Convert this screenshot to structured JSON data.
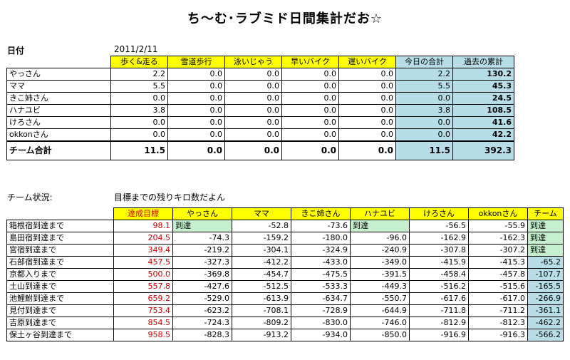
{
  "title": "ち～む･ラブミド日間集計だお☆",
  "date_label": "日付",
  "date_value": "2011/2/11",
  "daily": {
    "headers": [
      "歩く&走る",
      "雪道歩行",
      "泳いじゃう",
      "早いバイク",
      "遅いバイク",
      "今日の合計",
      "過去の累計"
    ],
    "rows": [
      {
        "name": "やっさん",
        "v": [
          "2.2",
          "0.0",
          "0.0",
          "0.0",
          "0.0",
          "2.2",
          "130.2"
        ]
      },
      {
        "name": "ママ",
        "v": [
          "5.5",
          "0.0",
          "0.0",
          "0.0",
          "0.0",
          "5.5",
          "45.3"
        ]
      },
      {
        "name": "きこ姉さん",
        "v": [
          "0.0",
          "0.0",
          "0.0",
          "0.0",
          "0.0",
          "0.0",
          "24.5"
        ]
      },
      {
        "name": "ハナユビ",
        "v": [
          "3.8",
          "0.0",
          "0.0",
          "0.0",
          "0.0",
          "3.8",
          "108.5"
        ]
      },
      {
        "name": "けろさん",
        "v": [
          "0.0",
          "0.0",
          "0.0",
          "0.0",
          "0.0",
          "0.0",
          "41.6"
        ]
      },
      {
        "name": "okkonさん",
        "v": [
          "0.0",
          "0.0",
          "0.0",
          "0.0",
          "0.0",
          "0.0",
          "42.2"
        ]
      }
    ],
    "total": {
      "name": "チーム合計",
      "v": [
        "11.5",
        "0.0",
        "0.0",
        "0.0",
        "0.0",
        "11.5",
        "392.3"
      ]
    }
  },
  "status_label": "チーム状況:",
  "status_sub": "目標までの残りキロ数だよん",
  "team": {
    "headers": [
      "達成目標",
      "やっさん",
      "ママ",
      "きこ姉さん",
      "ハナユビ",
      "けろさん",
      "okkonさん",
      "チーム"
    ],
    "rows": [
      {
        "name": "箱根宿到達まで",
        "v": [
          "98.1",
          "到達",
          "-52.8",
          "-73.6",
          "到達",
          "-56.5",
          "-55.9",
          "到達"
        ]
      },
      {
        "name": "島田宿到達まで",
        "v": [
          "204.5",
          "-74.3",
          "-159.2",
          "-180.0",
          "-96.0",
          "-162.9",
          "-162.3",
          "到達"
        ]
      },
      {
        "name": "宮宿到達まで",
        "v": [
          "349.4",
          "-219.2",
          "-304.1",
          "-324.9",
          "-240.9",
          "-307.8",
          "-307.2",
          "到達"
        ]
      },
      {
        "name": "石部宿到達まで",
        "v": [
          "457.5",
          "-327.3",
          "-412.2",
          "-433.0",
          "-349.0",
          "-415.9",
          "-415.3",
          "-65.2"
        ]
      },
      {
        "name": "京都入りまで",
        "v": [
          "500.0",
          "-369.8",
          "-454.7",
          "-475.5",
          "-391.5",
          "-458.4",
          "-457.8",
          "-107.7"
        ]
      },
      {
        "name": "土山到達まで",
        "v": [
          "557.8",
          "-427.6",
          "-512.5",
          "-533.3",
          "-449.3",
          "-516.2",
          "-515.6",
          "-165.5"
        ]
      },
      {
        "name": "池鯉鮒到達まで",
        "v": [
          "659.2",
          "-529.0",
          "-613.9",
          "-634.7",
          "-550.7",
          "-617.6",
          "-617.0",
          "-266.9"
        ]
      },
      {
        "name": "見付到達まで",
        "v": [
          "753.4",
          "-623.2",
          "-708.1",
          "-728.9",
          "-644.9",
          "-711.8",
          "-711.2",
          "-361.1"
        ]
      },
      {
        "name": "吉原到達まで",
        "v": [
          "854.5",
          "-724.3",
          "-809.2",
          "-830.0",
          "-746.0",
          "-812.9",
          "-812.3",
          "-462.2"
        ]
      },
      {
        "name": "保土ヶ谷到達まで",
        "v": [
          "958.5",
          "-828.3",
          "-913.2",
          "-934.0",
          "-850.0",
          "-916.9",
          "-916.3",
          "-566.2"
        ]
      }
    ]
  },
  "colors": {
    "header": "#ffff00",
    "total_cols": "#b7dde8",
    "reached": "#c6efce",
    "target_text": "#d00000"
  }
}
